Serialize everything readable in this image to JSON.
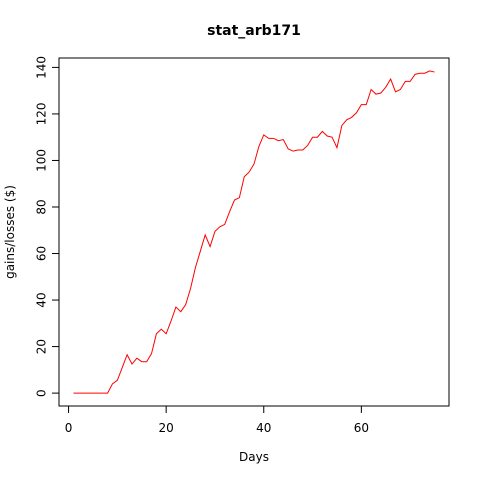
{
  "chart_data": {
    "type": "line",
    "title": "stat_arb171",
    "x_label": "Days",
    "y_label": "gains/losses ($)",
    "x": [
      1,
      2,
      3,
      4,
      5,
      6,
      7,
      8,
      9,
      10,
      11,
      12,
      13,
      14,
      15,
      16,
      17,
      18,
      19,
      20,
      21,
      22,
      23,
      24,
      25,
      26,
      27,
      28,
      29,
      30,
      31,
      32,
      33,
      34,
      35,
      36,
      37,
      38,
      39,
      40,
      41,
      42,
      43,
      44,
      45,
      46,
      47,
      48,
      49,
      50,
      51,
      52,
      53,
      54,
      55,
      56,
      57,
      58,
      59,
      60,
      61,
      62,
      63,
      64,
      65,
      66,
      67,
      68,
      69,
      70,
      71,
      72,
      73,
      74,
      75
    ],
    "series": [
      {
        "name": "gains",
        "color": "#ff0000",
        "values": [
          0,
          0,
          0,
          0,
          0,
          0,
          0,
          0,
          4,
          5.5,
          11,
          16.5,
          12.5,
          15,
          13.5,
          13.5,
          17,
          25.5,
          27.5,
          25.5,
          31,
          37,
          35,
          38,
          45,
          54,
          61,
          68,
          63,
          69.5,
          71.5,
          72.5,
          78,
          83,
          84,
          93,
          95,
          98.5,
          106,
          111,
          109.5,
          109.5,
          108.5,
          109,
          105,
          104,
          104.5,
          104.5,
          106.5,
          110,
          110,
          112.5,
          110.5,
          110,
          105.5,
          115,
          117.5,
          118.5,
          120.5,
          124,
          124,
          130.5,
          128.5,
          129,
          131.5,
          135,
          129.5,
          130.5,
          134,
          134,
          137,
          137.5,
          137.5,
          138.5,
          138
        ]
      }
    ],
    "xlim": [
      -1.96,
      77.96
    ],
    "xticks": [
      0,
      20,
      40,
      60
    ],
    "ylim": [
      -5.54,
      144.04
    ],
    "yticks": [
      0,
      20,
      40,
      60,
      80,
      100,
      120,
      140
    ]
  }
}
